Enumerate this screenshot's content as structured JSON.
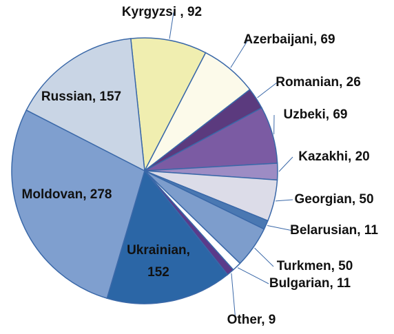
{
  "chart_data": {
    "type": "pie",
    "values": [
      92,
      69,
      26,
      69,
      20,
      50,
      11,
      50,
      11,
      9,
      152,
      278,
      157
    ],
    "value_labels": [
      "Kyrgyzsi , 92",
      "Azerbaijani, 69",
      "Romanian, 26",
      "Uzbeki, 69",
      "Kazakhi, 20",
      "Georgian, 50",
      "Belarusian, 11",
      "Turkmen, 50",
      "Bulgarian, 11",
      "Other, 9",
      "Ukrainian, 152",
      "Moldovan, 278",
      "Russian, 157"
    ],
    "colors": [
      "#f0eeb0",
      "#fcfaea",
      "#5b3a7e",
      "#7b5ba3",
      "#9d8cc4",
      "#dcdce8",
      "#4a78b2",
      "#7d9dcc",
      "#ffffff",
      "#5b3a8a",
      "#2b66a6",
      "#7f9fcf",
      "#c9d5e5"
    ]
  }
}
